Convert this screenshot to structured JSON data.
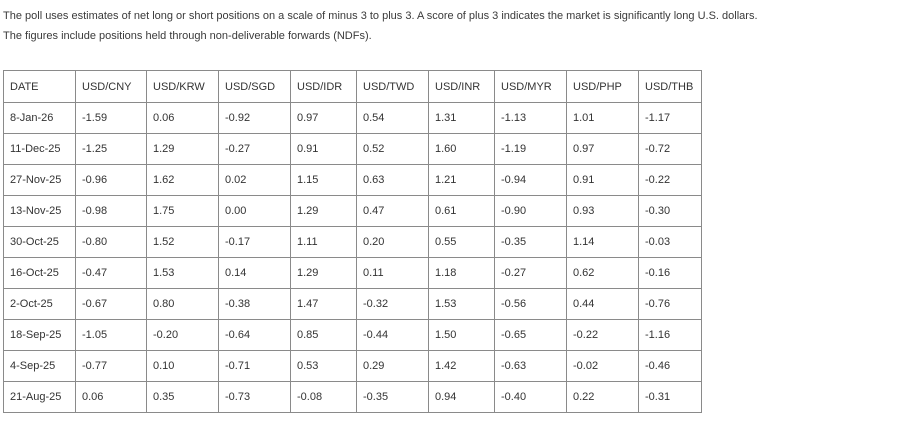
{
  "intro": {
    "line1": "The poll uses estimates of net long or short positions on a scale of minus 3 to plus 3. A score of plus 3 indicates the market is significantly long U.S. dollars.",
    "line2": "The figures include positions held through non-deliverable forwards (NDFs)."
  },
  "table": {
    "headers": [
      "DATE",
      "USD/CNY",
      "USD/KRW",
      "USD/SGD",
      "USD/IDR",
      "USD/TWD",
      "USD/INR",
      "USD/MYR",
      "USD/PHP",
      "USD/THB"
    ],
    "rows": [
      [
        "8-Jan-26",
        "-1.59",
        "0.06",
        "-0.92",
        "0.97",
        "0.54",
        "1.31",
        "-1.13",
        "1.01",
        "-1.17"
      ],
      [
        "11-Dec-25",
        "-1.25",
        "1.29",
        "-0.27",
        "0.91",
        "0.52",
        "1.60",
        "-1.19",
        "0.97",
        "-0.72"
      ],
      [
        "27-Nov-25",
        "-0.96",
        "1.62",
        "0.02",
        "1.15",
        "0.63",
        "1.21",
        "-0.94",
        "0.91",
        "-0.22"
      ],
      [
        "13-Nov-25",
        "-0.98",
        "1.75",
        "0.00",
        "1.29",
        "0.47",
        "0.61",
        "-0.90",
        "0.93",
        "-0.30"
      ],
      [
        "30-Oct-25",
        "-0.80",
        "1.52",
        "-0.17",
        "1.11",
        "0.20",
        "0.55",
        "-0.35",
        "1.14",
        "-0.03"
      ],
      [
        "16-Oct-25",
        "-0.47",
        "1.53",
        "0.14",
        "1.29",
        "0.11",
        "1.18",
        "-0.27",
        "0.62",
        "-0.16"
      ],
      [
        "2-Oct-25",
        "-0.67",
        "0.80",
        "-0.38",
        "1.47",
        "-0.32",
        "1.53",
        "-0.56",
        "0.44",
        "-0.76"
      ],
      [
        "18-Sep-25",
        "-1.05",
        "-0.20",
        "-0.64",
        "0.85",
        "-0.44",
        "1.50",
        "-0.65",
        "-0.22",
        "-1.16"
      ],
      [
        "4-Sep-25",
        "-0.77",
        "0.10",
        "-0.71",
        "0.53",
        "0.29",
        "1.42",
        "-0.63",
        "-0.02",
        "-0.46"
      ],
      [
        "21-Aug-25",
        "0.06",
        "0.35",
        "-0.73",
        "-0.08",
        "-0.35",
        "0.94",
        "-0.40",
        "0.22",
        "-0.31"
      ]
    ]
  }
}
